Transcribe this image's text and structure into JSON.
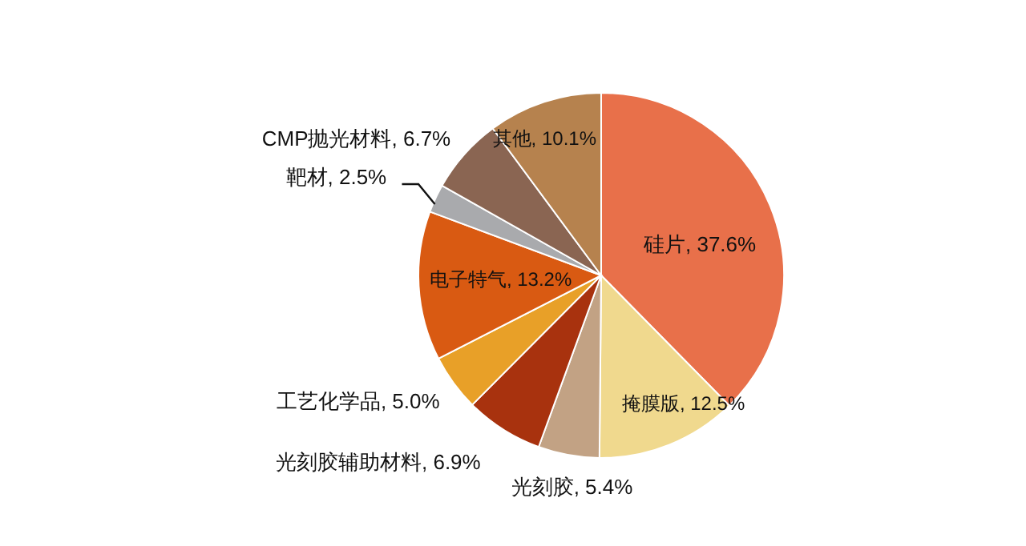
{
  "chart_data": {
    "type": "pie",
    "categories": [
      "硅片",
      "掩膜版",
      "光刻胶",
      "光刻胶辅助材料",
      "工艺化学品",
      "电子特气",
      "靶材",
      "CMP抛光材料",
      "其他"
    ],
    "values": [
      37.6,
      12.5,
      5.4,
      6.9,
      5.0,
      13.2,
      2.5,
      6.7,
      10.1
    ],
    "colors": [
      "#e8704a",
      "#f0d98e",
      "#c2a284",
      "#a8320e",
      "#e8a028",
      "#d95a12",
      "#a9aaad",
      "#8a6552",
      "#b6824e"
    ],
    "value_labels": [
      "37.6%",
      "12.5%",
      "5.4%",
      "6.9%",
      "5.0%",
      "13.2%",
      "2.5%",
      "6.7%",
      "10.1%"
    ],
    "legend": false
  }
}
